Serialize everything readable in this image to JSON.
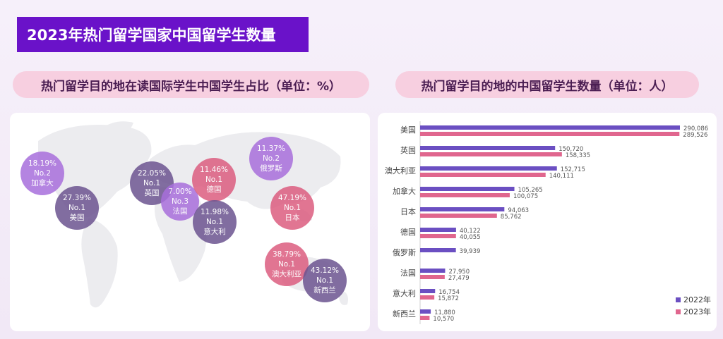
{
  "page_title": "2023年热门留学国家中国留学生数量",
  "left_section": {
    "title": "热门留学目的地在读国际学生中国学生占比（单位：%）",
    "bubbles": [
      {
        "pct": "18.19%",
        "rank": "No.2",
        "country": "加拿大",
        "color": "#a86fdc"
      },
      {
        "pct": "27.39%",
        "rank": "No.1",
        "country": "美国",
        "color": "#6c5490"
      },
      {
        "pct": "22.05%",
        "rank": "No.1",
        "country": "英国",
        "color": "#6c5490"
      },
      {
        "pct": "7.00%",
        "rank": "No.3",
        "country": "法国",
        "color": "#a86fdc"
      },
      {
        "pct": "11.46%",
        "rank": "No.1",
        "country": "德国",
        "color": "#dc5d80"
      },
      {
        "pct": "11.98%",
        "rank": "No.1",
        "country": "意大利",
        "color": "#6c5490"
      },
      {
        "pct": "11.37%",
        "rank": "No.2",
        "country": "俄罗斯",
        "color": "#a86fdc"
      },
      {
        "pct": "47.19%",
        "rank": "No.1",
        "country": "日本",
        "color": "#dc5d80"
      },
      {
        "pct": "38.79%",
        "rank": "No.1",
        "country": "澳大利亚",
        "color": "#dc5d80"
      },
      {
        "pct": "43.12%",
        "rank": "No.1",
        "country": "新西兰",
        "color": "#6c5490"
      }
    ]
  },
  "right_section": {
    "title": "热门留学目的地的中国留学生数量（单位：人）"
  },
  "chart_data": {
    "type": "bar",
    "orientation": "horizontal",
    "categories": [
      "美国",
      "英国",
      "澳大利亚",
      "加拿大",
      "日本",
      "德国",
      "俄罗斯",
      "法国",
      "意大利",
      "新西兰"
    ],
    "series": [
      {
        "name": "2022年",
        "color": "#6b4fc2",
        "values": [
          290086,
          150720,
          152715,
          105265,
          94063,
          40122,
          39939,
          27950,
          16754,
          11880
        ],
        "labels": [
          "290,086",
          "150,720",
          "152,715",
          "105,265",
          "94,063",
          "40,122",
          "39,939",
          "27,950",
          "16,754",
          "11,880"
        ]
      },
      {
        "name": "2023年",
        "color": "#e0668e",
        "values": [
          289526,
          158335,
          140111,
          100075,
          85762,
          40055,
          null,
          27479,
          15872,
          10570
        ],
        "labels": [
          "289,526",
          "158,335",
          "140,111",
          "100,075",
          "85,762",
          "40,055",
          "",
          "27,479",
          "15,872",
          "10,570"
        ]
      }
    ],
    "legend_position": "bottom-right",
    "grid": false
  }
}
